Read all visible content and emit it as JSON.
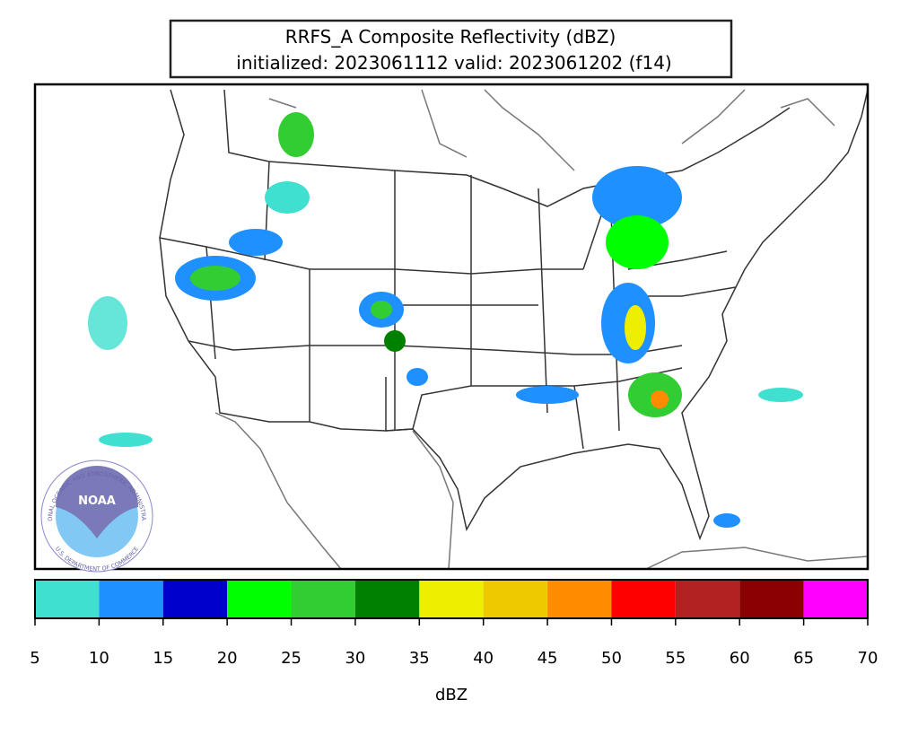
{
  "header": {
    "title": "RRFS_A Composite Reflectivity (dBZ)",
    "subtitle": "initialized: 2023061112 valid: 2023061202 (f14)"
  },
  "logo": {
    "name": "NOAA",
    "ring_top": "NATIONAL OCEANIC AND ATMOSPHERIC ADMINISTRATION",
    "ring_bottom": "U.S. DEPARTMENT OF COMMERCE"
  },
  "colorbar": {
    "label": "dBZ",
    "lim": [
      5,
      70
    ],
    "ticks": [
      5,
      10,
      15,
      20,
      25,
      30,
      35,
      40,
      45,
      50,
      55,
      60,
      65,
      70
    ],
    "colors": [
      "#40e0d0",
      "#1e90ff",
      "#0000cd",
      "#00ff00",
      "#32cd32",
      "#008000",
      "#eeee00",
      "#eec900",
      "#ff8c00",
      "#ff0000",
      "#b22222",
      "#8b0000",
      "#ff00ff"
    ]
  }
}
